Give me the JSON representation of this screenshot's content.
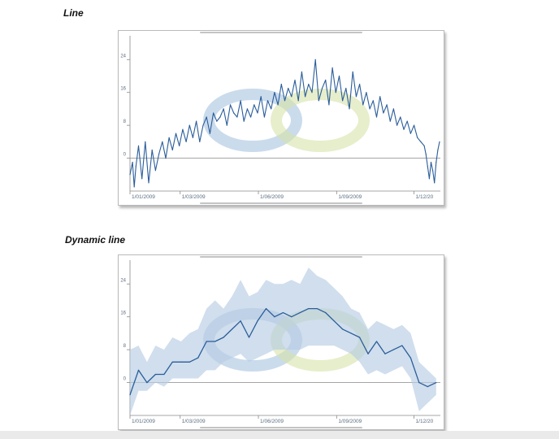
{
  "page": {
    "heading_line": "Line",
    "heading_dynamic": "Dynamic line"
  },
  "colors": {
    "series": "#2a5d9a",
    "band": "#b7cde4",
    "axis_text": "#5a6e82",
    "axis_line": "#8a8a8a",
    "watermark_blue": "#9fbddc",
    "watermark_green": "#d6e3a8"
  },
  "chart_data": [
    {
      "type": "line",
      "title": "Line",
      "ylim": [
        -8,
        29
      ],
      "yticks": [
        0,
        8,
        16,
        24
      ],
      "ytick_labels": [
        "0",
        "8",
        "16",
        "24"
      ],
      "xlim": [
        0,
        365
      ],
      "xticks": [
        0,
        59,
        151,
        243,
        334
      ],
      "xtick_labels": [
        "1/01/2009",
        "1/03/2009",
        "1/06/2009",
        "1/09/2009",
        "1/12/20"
      ],
      "series": [
        {
          "name": "Line",
          "x": [
            0,
            3,
            5,
            7,
            10,
            14,
            18,
            22,
            26,
            30,
            34,
            38,
            42,
            46,
            50,
            54,
            58,
            62,
            66,
            70,
            74,
            78,
            82,
            86,
            90,
            94,
            98,
            102,
            106,
            110,
            114,
            118,
            122,
            126,
            130,
            134,
            138,
            142,
            146,
            150,
            154,
            158,
            162,
            166,
            170,
            174,
            178,
            182,
            186,
            190,
            194,
            198,
            202,
            206,
            210,
            214,
            218,
            222,
            226,
            230,
            234,
            238,
            242,
            246,
            250,
            254,
            258,
            262,
            266,
            270,
            274,
            278,
            282,
            286,
            290,
            294,
            298,
            302,
            306,
            310,
            314,
            318,
            322,
            326,
            330,
            334,
            338,
            342,
            346,
            348,
            350,
            352,
            354,
            356,
            358,
            360,
            362,
            364
          ],
          "values": [
            -4,
            -1,
            -7,
            -2,
            3,
            -5,
            4,
            -6,
            2,
            -3,
            1,
            4,
            0,
            5,
            2,
            6,
            3,
            7,
            4,
            8,
            5,
            9,
            4,
            8,
            10,
            6,
            11,
            9,
            10,
            12,
            8,
            13,
            11,
            10,
            14,
            9,
            12,
            10,
            13,
            11,
            15,
            10,
            14,
            12,
            16,
            13,
            18,
            14,
            17,
            15,
            19,
            14,
            21,
            15,
            18,
            16,
            24,
            14,
            17,
            19,
            13,
            22,
            16,
            20,
            14,
            17,
            12,
            21,
            15,
            18,
            13,
            16,
            12,
            14,
            10,
            15,
            11,
            13,
            9,
            12,
            8,
            10,
            7,
            9,
            6,
            8,
            5,
            4,
            3,
            1,
            -2,
            -5,
            -1,
            -3,
            -6,
            -1,
            2,
            4
          ]
        }
      ]
    },
    {
      "type": "line",
      "title": "Dynamic line",
      "ylim": [
        -8,
        29
      ],
      "yticks": [
        0,
        8,
        16,
        24
      ],
      "ytick_labels": [
        "0",
        "8",
        "16",
        "24"
      ],
      "xlim": [
        0,
        365
      ],
      "xticks": [
        0,
        59,
        151,
        243,
        334
      ],
      "xtick_labels": [
        "1/01/2009",
        "1/03/2009",
        "1/06/2009",
        "1/09/2009",
        "1/12/20"
      ],
      "series": [
        {
          "name": "Dynamic line",
          "x": [
            0,
            10,
            20,
            30,
            40,
            50,
            60,
            70,
            80,
            90,
            100,
            110,
            120,
            130,
            140,
            150,
            160,
            170,
            180,
            190,
            200,
            210,
            220,
            230,
            240,
            250,
            260,
            270,
            280,
            290,
            300,
            310,
            320,
            330,
            340,
            350,
            360
          ],
          "values": [
            -3,
            3,
            0,
            2,
            2,
            5,
            5,
            5,
            6,
            10,
            10,
            11,
            13,
            15,
            11,
            15,
            18,
            16,
            17,
            16,
            17,
            18,
            18,
            17,
            15,
            13,
            12,
            11,
            7,
            10,
            7,
            8,
            9,
            6,
            0,
            -1,
            0
          ],
          "lower": [
            -8,
            -2,
            -2,
            0,
            -1,
            1,
            1,
            1,
            1,
            3,
            3,
            5,
            6,
            7,
            5,
            6,
            7,
            8,
            8,
            8,
            8,
            9,
            9,
            9,
            9,
            8,
            7,
            5,
            2,
            3,
            2,
            3,
            4,
            1,
            -7,
            -5,
            -3
          ],
          "upper": [
            8,
            9,
            5,
            9,
            8,
            11,
            10,
            12,
            13,
            18,
            20,
            18,
            21,
            25,
            21,
            22,
            25,
            24,
            24,
            25,
            24,
            28,
            26,
            25,
            23,
            21,
            18,
            17,
            13,
            15,
            14,
            13,
            14,
            12,
            5,
            3,
            1
          ]
        }
      ]
    }
  ]
}
